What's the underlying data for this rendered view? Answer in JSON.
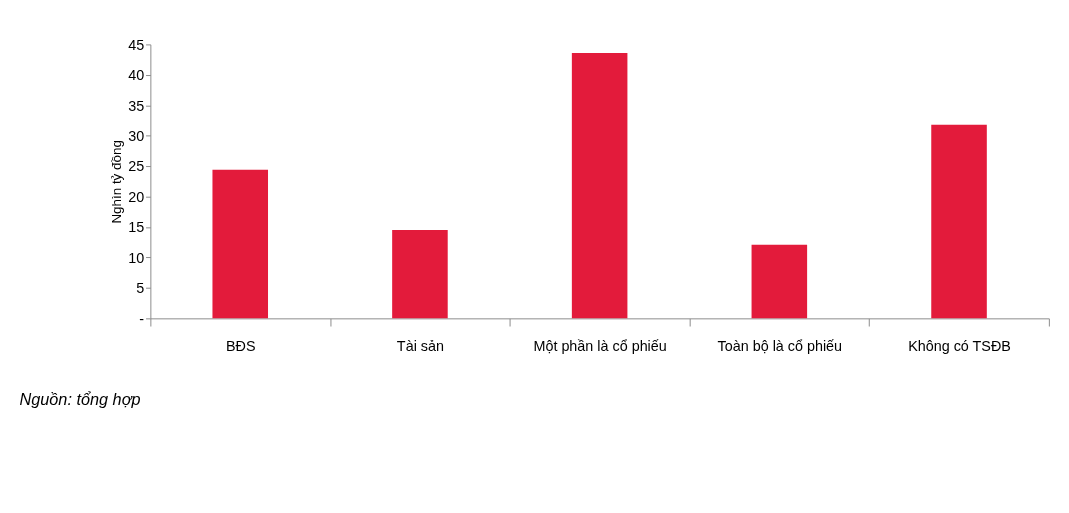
{
  "chart_data": {
    "type": "bar",
    "ylabel": "Nghìn tỷ đồng",
    "categories": [
      "BĐS",
      "Tài sản",
      "Một phần là cổ phiếu",
      "Toàn bộ là cổ phiếu",
      "Không có TSĐB"
    ],
    "values": [
      24.4,
      14.5,
      43.6,
      12.1,
      31.8
    ],
    "color": "#e31b3b",
    "ylim": [
      0,
      45
    ],
    "yticks": [
      {
        "value": 0,
        "label": "-"
      },
      5,
      10,
      15,
      20,
      25,
      30,
      35,
      40,
      45
    ],
    "grid": false,
    "annotations": [
      "Nguồn: tổng hợp"
    ]
  }
}
